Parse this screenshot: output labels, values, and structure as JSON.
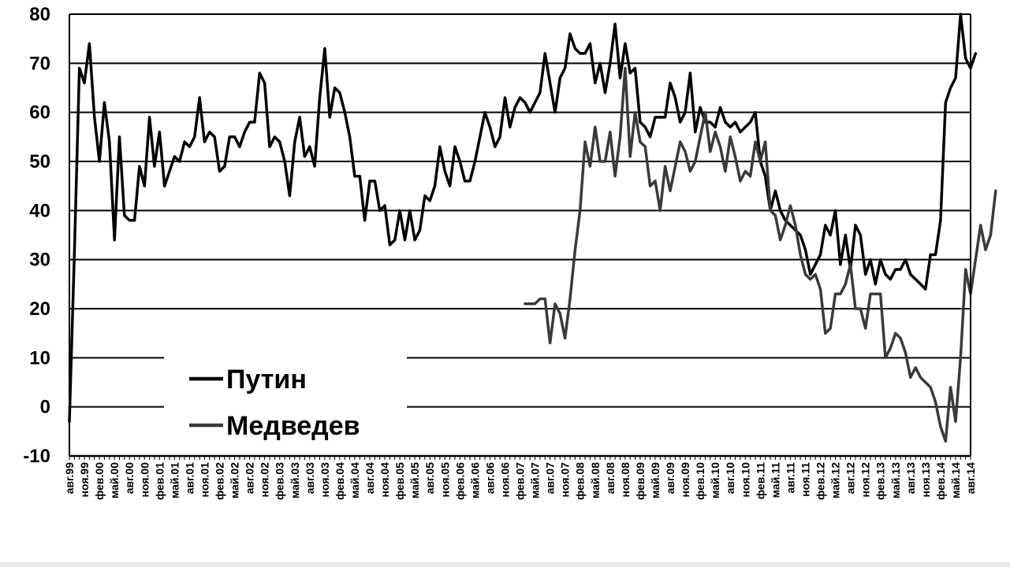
{
  "chart_data": {
    "type": "line",
    "ylim": [
      -10,
      80
    ],
    "yticks": [
      80,
      70,
      60,
      50,
      40,
      30,
      20,
      10,
      0,
      -10
    ],
    "xlabels": [
      "авг.99",
      "ноя.99",
      "фев.00",
      "май.00",
      "авг.00",
      "ноя.00",
      "фев.01",
      "май.01",
      "авг.01",
      "ноя.01",
      "фев.02",
      "май.02",
      "авг.02",
      "ноя.02",
      "фев.03",
      "май.03",
      "авг.03",
      "ноя.03",
      "фев.04",
      "май.04",
      "авг.04",
      "ноя.04",
      "фев.05",
      "май.05",
      "авг.05",
      "ноя.05",
      "фев.06",
      "май.06",
      "авг.06",
      "ноя.06",
      "фев.07",
      "май.07",
      "авг.07",
      "ноя.07",
      "фев.08",
      "май.08",
      "авг.08",
      "ноя.08",
      "фев.09",
      "май.09",
      "авг.09",
      "ноя.09",
      "фев.10",
      "май.10",
      "авг.10",
      "ноя.10",
      "фев.11",
      "май.11",
      "авг.11",
      "ноя.11",
      "фев.12",
      "май.12",
      "авг.12",
      "ноя.12",
      "фев.13",
      "май.13",
      "авг.13",
      "ноя.13",
      "фев.14",
      "май.14",
      "авг.14"
    ],
    "grid": true,
    "legend_position": "bottom-left",
    "series": [
      {
        "name": "Путин",
        "color": "#000000",
        "start_index": 0,
        "values": [
          -3,
          31,
          69,
          66,
          74,
          59,
          50,
          62,
          54,
          34,
          55,
          39,
          38,
          38,
          49,
          45,
          59,
          49,
          56,
          45,
          48,
          51,
          50,
          54,
          53,
          55,
          63,
          54,
          56,
          55,
          48,
          49,
          55,
          55,
          53,
          56,
          58,
          58,
          68,
          66,
          53,
          55,
          54,
          50,
          43,
          54,
          59,
          51,
          53,
          49,
          63,
          73,
          59,
          65,
          64,
          60,
          55,
          47,
          47,
          38,
          46,
          46,
          40,
          41,
          33,
          34,
          40,
          34,
          40,
          34,
          36,
          43,
          42,
          45,
          53,
          48,
          45,
          53,
          50,
          46,
          46,
          50,
          55,
          60,
          57,
          53,
          55,
          63,
          57,
          61,
          63,
          62,
          60,
          62,
          64,
          72,
          66,
          60,
          67,
          69,
          76,
          73,
          72,
          72,
          74,
          66,
          70,
          64,
          70,
          78,
          67,
          74,
          68,
          69,
          58,
          57,
          55,
          59,
          59,
          59,
          66,
          63,
          58,
          60,
          68,
          56,
          61,
          58,
          58,
          57,
          61,
          58,
          57,
          58,
          56,
          57,
          58,
          60,
          50,
          47,
          40,
          44,
          40,
          38,
          37,
          36,
          35,
          32,
          27,
          29,
          31,
          37,
          35,
          40,
          29,
          35,
          28,
          37,
          35,
          27,
          30,
          25,
          30,
          27,
          26,
          28,
          28,
          30,
          27,
          26,
          25,
          24,
          31,
          31,
          38,
          62,
          65,
          67,
          80,
          71,
          69,
          72
        ]
      },
      {
        "name": "Медведев",
        "color": "#3a3a3a",
        "start_index": 91,
        "values": [
          21,
          21,
          21,
          22,
          22,
          13,
          21,
          19,
          14,
          22,
          32,
          40,
          54,
          49,
          57,
          50,
          50,
          56,
          47,
          55,
          69,
          51,
          60,
          54,
          53,
          45,
          46,
          40,
          49,
          44,
          49,
          54,
          52,
          48,
          50,
          55,
          60,
          52,
          56,
          53,
          48,
          55,
          51,
          46,
          48,
          47,
          54,
          50,
          54,
          40,
          39,
          34,
          37,
          41,
          37,
          31,
          27,
          26,
          27,
          24,
          15,
          16,
          23,
          23,
          25,
          29,
          20,
          20,
          16,
          23,
          23,
          23,
          10,
          12,
          15,
          14,
          11,
          6,
          8,
          6,
          5,
          4,
          1,
          -4,
          -7,
          4,
          -3,
          10,
          28,
          23,
          30,
          37,
          32,
          35,
          44
        ]
      }
    ]
  }
}
